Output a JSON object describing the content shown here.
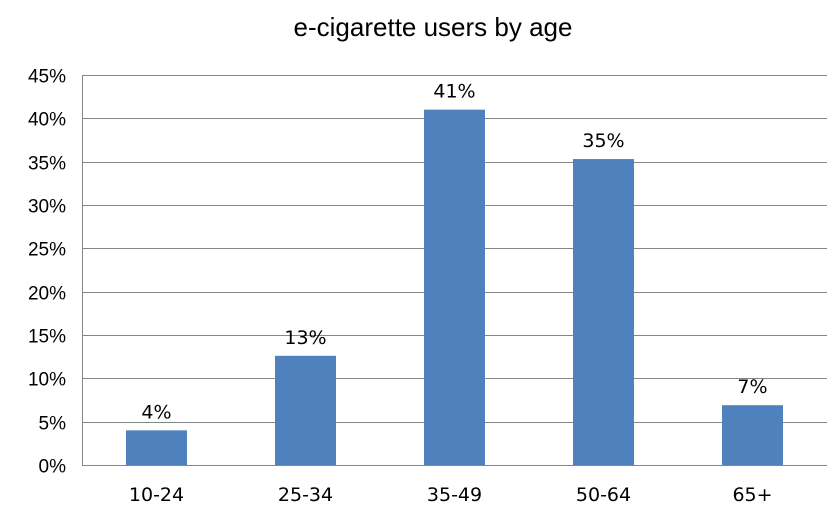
{
  "chart_data": {
    "type": "bar",
    "title": "e-cigarette users by age",
    "xlabel": "",
    "ylabel": "",
    "categories": [
      "10-24",
      "25-34",
      "35-49",
      "50-64",
      "65+"
    ],
    "values": [
      4,
      12.6,
      41,
      35.3,
      6.9
    ],
    "data_labels": [
      "4%",
      "13%",
      "41%",
      "35%",
      "7%"
    ],
    "ylim": [
      0,
      45
    ],
    "y_ticks": [
      0,
      5,
      10,
      15,
      20,
      25,
      30,
      35,
      40,
      45
    ],
    "y_tick_labels": [
      "0%",
      "5%",
      "10%",
      "15%",
      "20%",
      "25%",
      "30%",
      "35%",
      "40%",
      "45%"
    ],
    "grid": true,
    "legend": "none",
    "bar_color": "#4F81BD"
  }
}
